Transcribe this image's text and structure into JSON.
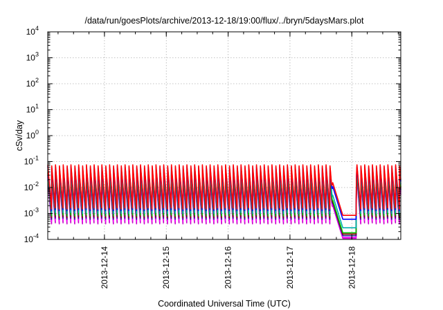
{
  "chart_data": {
    "type": "line",
    "title": "/data/run/goesPlots/archive/2013-12-18/19:00/flux/../bryn/5daysMars.plot",
    "xlabel": "Coordinated Universal Time (UTC)",
    "ylabel": "cSv/day",
    "yscale": "log",
    "ylim": [
      0.0001,
      10000
    ],
    "xlim": [
      "2013-12-13T02:00",
      "2013-12-18T19:00"
    ],
    "grid": true,
    "legend": "none",
    "x_tick_labels": [
      "2013-12-14",
      "2013-12-15",
      "2013-12-16",
      "2013-12-17",
      "2013-12-18"
    ],
    "y_tick_labels": [
      {
        "base": "10",
        "exp": "-4"
      },
      {
        "base": "10",
        "exp": "-3"
      },
      {
        "base": "10",
        "exp": "-2"
      },
      {
        "base": "10",
        "exp": "-1"
      },
      {
        "base": "10",
        "exp": "0"
      },
      {
        "base": "10",
        "exp": "1"
      },
      {
        "base": "10",
        "exp": "2"
      },
      {
        "base": "10",
        "exp": "3"
      },
      {
        "base": "10",
        "exp": "4"
      }
    ],
    "pattern": {
      "period_hours": 1.5,
      "sawtooth_max_over_min": 55,
      "dip_start": "2013-12-17T16:00",
      "dip_end": "2013-12-18T02:00"
    },
    "series": [
      {
        "color": "#ff0000",
        "peak": 0.075,
        "dip_level": 0.00085
      },
      {
        "color": "#0000ff",
        "peak": 0.065,
        "dip_level": 0.0006
      },
      {
        "color": "#00b0b0",
        "peak": 0.05,
        "dip_level": 0.00028
      },
      {
        "color": "#00c000",
        "peak": 0.04,
        "dip_level": 0.00018
      },
      {
        "color": "#ff00ff",
        "peak": 0.025,
        "dip_level": 0.00012
      },
      {
        "color": "#8b0000",
        "peak": 0.035,
        "dip_level": 0.00016
      },
      {
        "color": "#202090",
        "peak": 0.03,
        "dip_level": 0.00014
      },
      {
        "color": "#cc00cc",
        "peak": 0.02,
        "dip_level": 0.00011
      }
    ]
  }
}
